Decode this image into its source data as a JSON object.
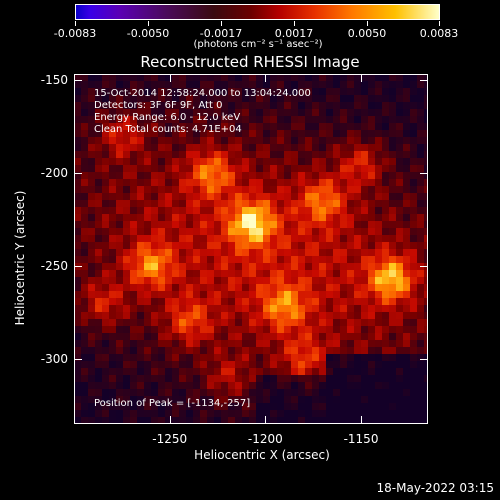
{
  "colorbar": {
    "ticks": [
      "-0.0083",
      "-0.0050",
      "-0.0017",
      "0.0017",
      "0.0050",
      "0.0083"
    ],
    "unit": "(photons cm⁻² s⁻¹ asec⁻²)"
  },
  "chart_data": {
    "type": "heatmap",
    "title": "Reconstructed RHESSI Image",
    "xlabel": "Heliocentric X (arcsec)",
    "ylabel": "Heliocentric Y (arcsec)",
    "xlim": [
      -1300,
      -1115
    ],
    "ylim": [
      -335,
      -147
    ],
    "xticks": [
      "-1250",
      "-1200",
      "-1150"
    ],
    "xtick_values": [
      -1250,
      -1200,
      -1150
    ],
    "yticks": [
      "-150",
      "-200",
      "-250",
      "-300"
    ],
    "ytick_values": [
      -150,
      -200,
      -250,
      -300
    ],
    "colorbar_range": [
      -0.0083,
      0.0083
    ],
    "colormap": "red-temperature",
    "peak": [
      -1134,
      -257
    ],
    "sources": [
      {
        "x": -1207,
        "y": -227,
        "intensity": 1.0
      },
      {
        "x": -1134,
        "y": -257,
        "intensity": 1.0
      },
      {
        "x": -1228,
        "y": -200,
        "intensity": 0.75
      },
      {
        "x": -1260,
        "y": -250,
        "intensity": 0.8
      },
      {
        "x": -1170,
        "y": -215,
        "intensity": 0.7
      },
      {
        "x": -1190,
        "y": -272,
        "intensity": 0.7
      },
      {
        "x": -1240,
        "y": -280,
        "intensity": 0.6
      },
      {
        "x": -1150,
        "y": -195,
        "intensity": 0.6
      },
      {
        "x": -1275,
        "y": -180,
        "intensity": 0.55
      },
      {
        "x": -1180,
        "y": -300,
        "intensity": 0.55
      },
      {
        "x": -1220,
        "y": -310,
        "intensity": 0.45
      },
      {
        "x": -1285,
        "y": -270,
        "intensity": 0.55
      }
    ]
  },
  "info": {
    "time": "15-Oct-2014 12:58:24.000 to 13:04:24.000",
    "detectors": "Detectors: 3F 6F 9F, Att 0",
    "energy": "Energy Range: 6.0 - 12.0 keV",
    "method": "Clean     Total counts: 4.71E+04",
    "peak": "Position of Peak = [-1134,-257]"
  },
  "timestamp": "18-May-2022 03:15"
}
